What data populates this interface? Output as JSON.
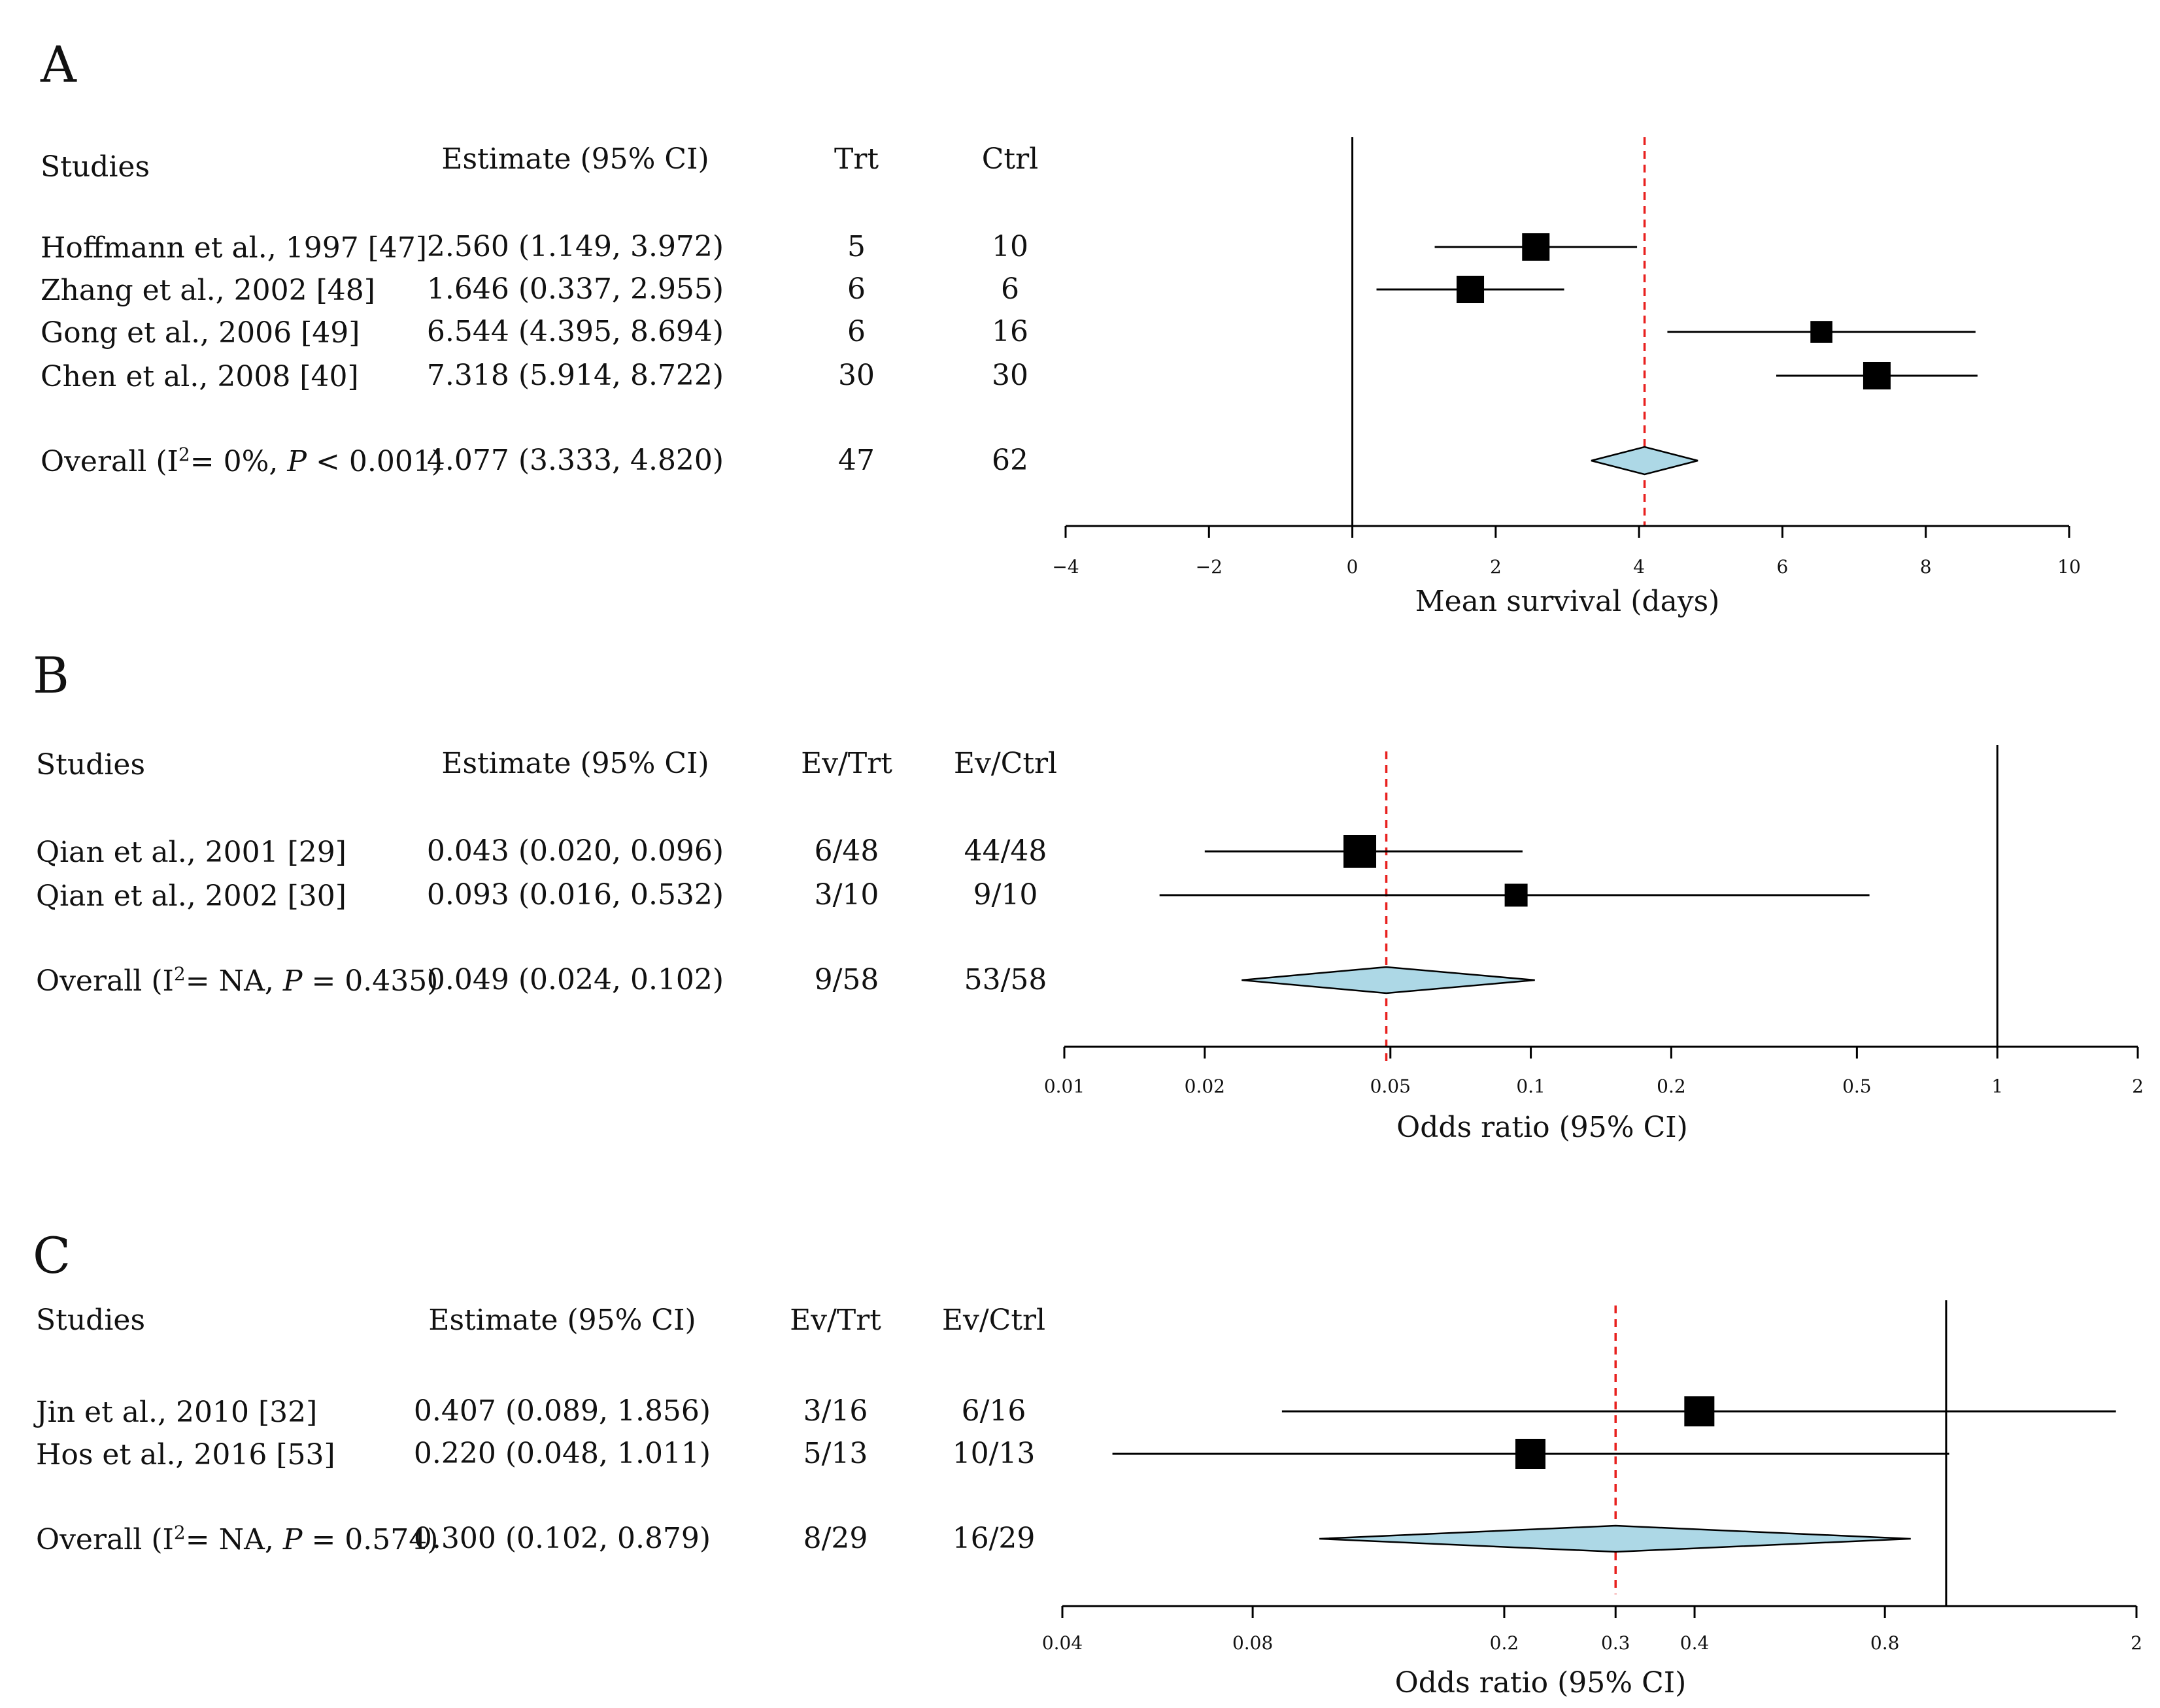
{
  "chart_data": [
    {
      "type": "forest",
      "panel_label": "A",
      "scale": "linear",
      "headers": {
        "study": "Studies",
        "estimate": "Estimate (95% CI)",
        "trt": "Trt",
        "ctrl": "Ctrl"
      },
      "studies": [
        {
          "name": "Hoffmann et al., 1997 [47]",
          "estimate_text": "2.560 (1.149, 3.972)",
          "trt": "5",
          "ctrl": "10",
          "est": 2.56,
          "lo": 1.149,
          "hi": 3.972,
          "weight": 1.0
        },
        {
          "name": "Zhang et al., 2002 [48]",
          "estimate_text": "1.646 (0.337, 2.955)",
          "trt": "6",
          "ctrl": "6",
          "est": 1.646,
          "lo": 0.337,
          "hi": 2.955,
          "weight": 1.0
        },
        {
          "name": "Gong et al., 2006 [49]",
          "estimate_text": "6.544 (4.395, 8.694)",
          "trt": "6",
          "ctrl": "16",
          "est": 6.544,
          "lo": 4.395,
          "hi": 8.694,
          "weight": 0.8
        },
        {
          "name": "Chen et al., 2008 [40]",
          "estimate_text": "7.318 (5.914, 8.722)",
          "trt": "30",
          "ctrl": "30",
          "est": 7.318,
          "lo": 5.914,
          "hi": 8.722,
          "weight": 1.0
        }
      ],
      "overall": {
        "label_prefix": "Overall (I",
        "label_mid": "= 0%, ",
        "p_letter": "P",
        "label_suffix": " < 0.001)",
        "estimate_text": "4.077 (3.333, 4.820)",
        "trt": "47",
        "ctrl": "62",
        "est": 4.077,
        "lo": 3.333,
        "hi": 4.82
      },
      "null_value": 0,
      "xlim": [
        -4,
        10
      ],
      "ticks": [
        -4,
        -2,
        0,
        2,
        4,
        6,
        8,
        10
      ],
      "tick_labels": [
        "−4",
        "−2",
        "0",
        "2",
        "4",
        "6",
        "8",
        "10"
      ],
      "xlabel": "Mean survival (days)"
    },
    {
      "type": "forest",
      "panel_label": "B",
      "scale": "log",
      "headers": {
        "study": "Studies",
        "estimate": "Estimate (95% CI)",
        "trt": "Ev/Trt",
        "ctrl": "Ev/Ctrl"
      },
      "studies": [
        {
          "name": "Qian et al., 2001 [29]",
          "estimate_text": "0.043 (0.020, 0.096)",
          "trt": "6/48",
          "ctrl": "44/48",
          "est": 0.043,
          "lo": 0.02,
          "hi": 0.096,
          "weight": 1.0
        },
        {
          "name": "Qian et al., 2002 [30]",
          "estimate_text": "0.093 (0.016, 0.532)",
          "trt": "3/10",
          "ctrl": "9/10",
          "est": 0.093,
          "lo": 0.016,
          "hi": 0.532,
          "weight": 0.7
        }
      ],
      "overall": {
        "label_prefix": "Overall (I",
        "label_mid": "= NA, ",
        "p_letter": "P",
        "label_suffix": " = 0.435)",
        "estimate_text": "0.049 (0.024, 0.102)",
        "trt": "9/58",
        "ctrl": "53/58",
        "est": 0.049,
        "lo": 0.024,
        "hi": 0.102
      },
      "null_value": 1,
      "xlim": [
        0.01,
        2
      ],
      "ticks": [
        0.01,
        0.02,
        0.05,
        0.1,
        0.2,
        0.5,
        1,
        2
      ],
      "tick_labels": [
        "0.01",
        "0.02",
        "0.05",
        "0.1",
        "0.2",
        "0.5",
        "1",
        "2"
      ],
      "xlabel": "Odds ratio (95% CI)"
    },
    {
      "type": "forest",
      "panel_label": "C",
      "scale": "log",
      "headers": {
        "study": "Studies",
        "estimate": "Estimate (95% CI)",
        "trt": "Ev/Trt",
        "ctrl": "Ev/Ctrl"
      },
      "studies": [
        {
          "name": "Jin et al., 2010 [32]",
          "estimate_text": "0.407 (0.089, 1.856)",
          "trt": "3/16",
          "ctrl": "6/16",
          "est": 0.407,
          "lo": 0.089,
          "hi": 1.856,
          "weight": 1.0
        },
        {
          "name": "Hos et al., 2016 [53]",
          "estimate_text": "0.220 (0.048, 1.011)",
          "trt": "5/13",
          "ctrl": "10/13",
          "est": 0.22,
          "lo": 0.048,
          "hi": 1.011,
          "weight": 1.0
        }
      ],
      "overall": {
        "label_prefix": "Overall (I",
        "label_mid": "= NA, ",
        "p_letter": "P",
        "label_suffix": " = 0.574)",
        "estimate_text": "0.300 (0.102, 0.879)",
        "trt": "8/29",
        "ctrl": "16/29",
        "est": 0.3,
        "lo": 0.102,
        "hi": 0.879
      },
      "null_value": 1,
      "xlim": [
        0.04,
        2
      ],
      "ticks": [
        0.04,
        0.08,
        0.2,
        0.3,
        0.4,
        0.8,
        2
      ],
      "tick_labels": [
        "0.04",
        "0.08",
        "0.2",
        "0.3",
        "0.4",
        "0.8",
        "2"
      ],
      "xlabel": "Odds ratio (95% CI)"
    }
  ],
  "styles": {
    "marker_color": "#000000",
    "line_color": "#000000",
    "diamond_fill": "#add8e6",
    "reference_line_color": "#e8201e"
  }
}
